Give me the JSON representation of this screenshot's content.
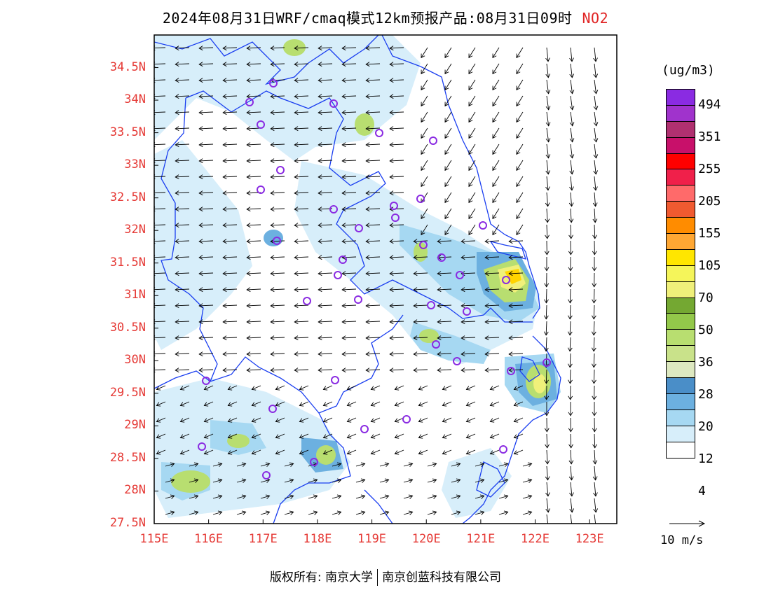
{
  "title": {
    "main": "2024年08月31日WRF/cmaq模式12km预报产品:08月31日09时",
    "pollutant": "NO2"
  },
  "axes": {
    "lat_labels": [
      "34.5N",
      "34N",
      "33.5N",
      "33N",
      "32.5N",
      "32N",
      "31.5N",
      "31N",
      "30.5N",
      "30N",
      "29.5N",
      "29N",
      "28.5N",
      "28N",
      "27.5N"
    ],
    "lat_values": [
      34.5,
      34,
      33.5,
      33,
      32.5,
      32,
      31.5,
      31,
      30.5,
      30,
      29.5,
      29,
      28.5,
      28,
      27.5
    ],
    "lon_labels": [
      "115E",
      "116E",
      "117E",
      "118E",
      "119E",
      "120E",
      "121E",
      "122E",
      "123E"
    ],
    "lon_values": [
      115,
      116,
      117,
      118,
      119,
      120,
      121,
      122,
      123
    ],
    "lon_range": [
      115,
      123.5
    ],
    "lat_range": [
      27.5,
      35
    ]
  },
  "legend": {
    "unit": "(ug/m3)",
    "labels": [
      "494",
      "351",
      "255",
      "205",
      "155",
      "105",
      "70",
      "50",
      "36",
      "28",
      "20",
      "12",
      "4"
    ],
    "colors": [
      "#8a2be2",
      "#a033cc",
      "#b03070",
      "#c8106a",
      "#ff0000",
      "#f0204a",
      "#ff6a6a",
      "#f05a30",
      "#ff8c00",
      "#ffa733",
      "#ffe600",
      "#f5f55a",
      "#f0f07a",
      "#74a832",
      "#93c84a",
      "#b8de70",
      "#c9e28a",
      "#dde8c0",
      "#4a8ec8",
      "#6cb0e0",
      "#a6d8f2",
      "#d7eefa",
      "#ffffff"
    ]
  },
  "wind_scale": {
    "label": "10 m/s"
  },
  "footer": {
    "left": "版权所有: 南京大学",
    "right": "南京创蓝科技有限公司"
  },
  "colors": {
    "border_blue": "#1a3ef0",
    "axis_red": "#e53935",
    "station_purple": "#8a2be2"
  }
}
